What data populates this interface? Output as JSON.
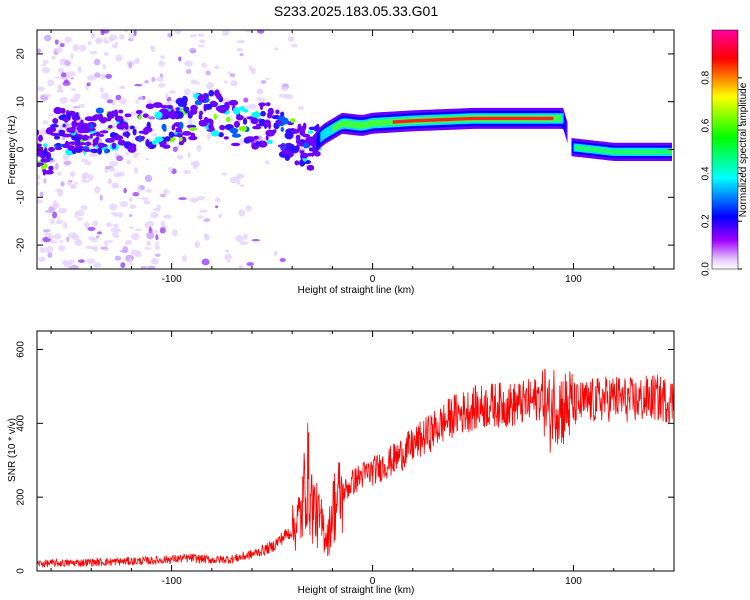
{
  "title": "S233.2025.183.05.33.G01",
  "colorbar": {
    "label": "Normalized spectral amplitude",
    "ticks": [
      "0.0",
      "0.2",
      "0.4",
      "0.6",
      "0.8"
    ],
    "tick_values": [
      0.0,
      0.2,
      0.4,
      0.6,
      0.8
    ],
    "range": [
      0,
      1
    ],
    "colors": [
      "#ffffff",
      "#a000ff",
      "#0000ff",
      "#00ffff",
      "#00ff00",
      "#ffff00",
      "#ff0000",
      "#ff00a0"
    ]
  },
  "chart_data": [
    {
      "type": "heatmap",
      "xlabel": "Height of straight line (km)",
      "ylabel": "Frequency (Hz)",
      "xlim": [
        -167,
        150
      ],
      "ylim": [
        -25,
        25
      ],
      "xticks": [
        -100,
        0,
        100
      ],
      "yticks": [
        -20,
        -10,
        0,
        10,
        20
      ],
      "grid": false,
      "ridge": [
        {
          "x": -160,
          "f": 4.0
        },
        {
          "x": -140,
          "f": 3.5
        },
        {
          "x": -120,
          "f": 4.5
        },
        {
          "x": -100,
          "f": 5.0
        },
        {
          "x": -90,
          "f": 6.5
        },
        {
          "x": -80,
          "f": 8.0
        },
        {
          "x": -70,
          "f": 5.5
        },
        {
          "x": -60,
          "f": 5.0
        },
        {
          "x": -50,
          "f": 5.0
        },
        {
          "x": -40,
          "f": 2.0
        },
        {
          "x": -30,
          "f": 0.5
        },
        {
          "x": -25,
          "f": 3.0
        },
        {
          "x": -15,
          "f": 5.5
        },
        {
          "x": -5,
          "f": 5.0
        },
        {
          "x": 0,
          "f": 5.5
        },
        {
          "x": 20,
          "f": 6.0
        },
        {
          "x": 50,
          "f": 6.5
        },
        {
          "x": 80,
          "f": 6.5
        },
        {
          "x": 95,
          "f": 6.5
        },
        {
          "x": 99,
          "f": 0.5
        },
        {
          "x": 120,
          "f": -0.5
        },
        {
          "x": 148,
          "f": -0.5
        }
      ]
    },
    {
      "type": "line",
      "xlabel": "Height of straight line (km)",
      "ylabel": "SNR (10 * v/v)",
      "xlim": [
        -167,
        150
      ],
      "ylim": [
        0,
        650
      ],
      "xticks": [
        -100,
        0,
        100
      ],
      "yticks": [
        0,
        200,
        400,
        600
      ],
      "grid": false,
      "line_color": "#ff0000",
      "series": [
        {
          "x": [
            -167,
            -150,
            -130,
            -110,
            -100,
            -90,
            -80,
            -70,
            -60,
            -50,
            -45,
            -40,
            -35,
            -33,
            -30,
            -27,
            -25,
            -22,
            -20,
            -15,
            -10,
            -5,
            0,
            10,
            20,
            30,
            40,
            50,
            60,
            70,
            80,
            85,
            88,
            90,
            95,
            100,
            110,
            120,
            130,
            140,
            150
          ],
          "values": [
            20,
            22,
            25,
            28,
            32,
            35,
            30,
            32,
            45,
            65,
            90,
            110,
            160,
            280,
            180,
            140,
            120,
            90,
            170,
            210,
            240,
            260,
            270,
            300,
            340,
            380,
            420,
            440,
            450,
            450,
            460,
            480,
            420,
            460,
            440,
            450,
            460,
            470,
            460,
            470,
            460
          ]
        }
      ]
    }
  ]
}
